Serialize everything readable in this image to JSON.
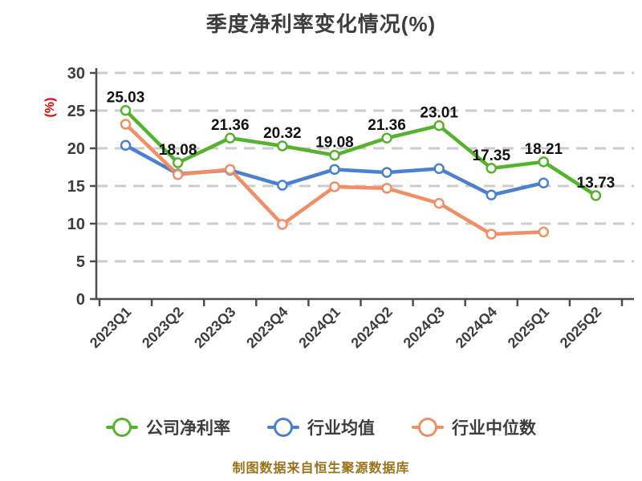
{
  "page": {
    "title": "季度净利率变化情况(%)",
    "y_axis_label": "(%)",
    "footer_note": "制图数据来自恒生聚源数据库"
  },
  "legend": {
    "items": [
      {
        "label": "公司净利率",
        "color": "#54b22c"
      },
      {
        "label": "行业均值",
        "color": "#4b7fd0"
      },
      {
        "label": "行业中位数",
        "color": "#f28e64"
      }
    ]
  },
  "chart_data": {
    "type": "line",
    "title": "季度净利率变化情况(%)",
    "ylabel": "(%)",
    "ylim": [
      0,
      30
    ],
    "ytick_step": 5,
    "yticks": [
      0,
      5,
      10,
      15,
      20,
      25,
      30
    ],
    "grid": "horizontal-dashed",
    "legend_position": "bottom",
    "categories": [
      "2023Q1",
      "2023Q2",
      "2023Q3",
      "2023Q4",
      "2024Q1",
      "2024Q2",
      "2024Q3",
      "2024Q4",
      "2025Q1",
      "2025Q2"
    ],
    "series": [
      {
        "name": "公司净利率",
        "color": "#54b22c",
        "show_labels": true,
        "values": [
          25.03,
          18.08,
          21.36,
          20.32,
          19.08,
          21.36,
          23.01,
          17.35,
          18.21,
          13.73
        ]
      },
      {
        "name": "行业均值",
        "color": "#4b7fd0",
        "show_labels": false,
        "values": [
          20.4,
          16.6,
          17.1,
          15.1,
          17.2,
          16.8,
          17.3,
          13.8,
          15.4,
          null
        ]
      },
      {
        "name": "行业中位数",
        "color": "#f28e64",
        "show_labels": false,
        "values": [
          23.2,
          16.5,
          17.2,
          9.9,
          14.9,
          14.7,
          12.7,
          8.6,
          8.9,
          null
        ]
      }
    ],
    "source_note": "制图数据来自恒生聚源数据库"
  },
  "colors": {
    "background": "#ffffff",
    "title": "#3d3d3d",
    "axis": "#4d4d4d",
    "grid": "#cccccc",
    "tick_label": "#3d3d3d",
    "value_label": "#111111",
    "y_axis_label": "#e60000",
    "footer": "#97731a"
  }
}
